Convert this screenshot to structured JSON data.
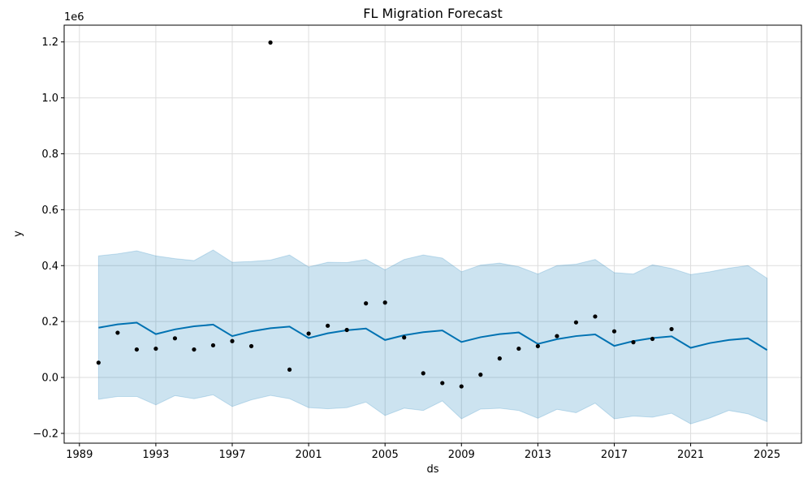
{
  "chart_data": {
    "type": "line",
    "title": "FL Migration Forecast",
    "xlabel": "ds",
    "ylabel": "y",
    "y_offset_label": "1e6",
    "y_scale": 1000000,
    "xlim": [
      1988.2,
      2026.8
    ],
    "ylim": [
      -0.235,
      1.26
    ],
    "x_ticks": [
      1989,
      1993,
      1997,
      2001,
      2005,
      2009,
      2013,
      2017,
      2021,
      2025
    ],
    "x_tick_labels": [
      "1989",
      "1993",
      "1997",
      "2001",
      "2005",
      "2009",
      "2013",
      "2017",
      "2021",
      "2025"
    ],
    "y_ticks": [
      -0.2,
      0.0,
      0.2,
      0.4,
      0.6,
      0.8,
      1.0,
      1.2
    ],
    "y_tick_labels": [
      "−0.2",
      "0.0",
      "0.2",
      "0.4",
      "0.6",
      "0.8",
      "1.0",
      "1.2"
    ],
    "grid": true,
    "colors": {
      "forecast_line": "#0072B2",
      "interval_fill": "#0072B2",
      "interval_opacity": 0.2,
      "points": "#000000",
      "grid": "#dddddd"
    },
    "series": [
      {
        "kind": "observed_points",
        "x": [
          1990,
          1991,
          1992,
          1993,
          1994,
          1995,
          1996,
          1997,
          1998,
          1999,
          2000,
          2001,
          2002,
          2003,
          2004,
          2005,
          2006,
          2007,
          2008,
          2009,
          2010,
          2011,
          2012,
          2013,
          2014,
          2015,
          2016,
          2017,
          2018,
          2019,
          2020
        ],
        "y": [
          0.053,
          0.16,
          0.1,
          0.103,
          0.14,
          0.1,
          0.115,
          0.13,
          0.112,
          1.198,
          0.028,
          0.157,
          0.185,
          0.17,
          0.265,
          0.268,
          0.143,
          0.015,
          -0.02,
          -0.032,
          0.01,
          0.068,
          0.103,
          0.112,
          0.148,
          0.197,
          0.218,
          0.165,
          0.126,
          0.138,
          0.173
        ]
      },
      {
        "kind": "forecast",
        "x": [
          1990,
          1991,
          1992,
          1993,
          1994,
          1995,
          1996,
          1997,
          1998,
          1999,
          2000,
          2001,
          2002,
          2003,
          2004,
          2005,
          2006,
          2007,
          2008,
          2009,
          2010,
          2011,
          2012,
          2013,
          2014,
          2015,
          2016,
          2017,
          2018,
          2019,
          2020,
          2021,
          2022,
          2023,
          2024,
          2025
        ],
        "yhat": [
          0.178,
          0.19,
          0.196,
          0.155,
          0.172,
          0.183,
          0.189,
          0.148,
          0.165,
          0.176,
          0.182,
          0.141,
          0.158,
          0.169,
          0.175,
          0.134,
          0.151,
          0.162,
          0.168,
          0.127,
          0.144,
          0.155,
          0.161,
          0.12,
          0.137,
          0.148,
          0.154,
          0.113,
          0.13,
          0.141,
          0.147,
          0.106,
          0.123,
          0.134,
          0.14,
          0.098
        ],
        "yhat_upper": [
          0.435,
          0.442,
          0.453,
          0.435,
          0.425,
          0.418,
          0.456,
          0.412,
          0.415,
          0.42,
          0.438,
          0.395,
          0.412,
          0.411,
          0.422,
          0.385,
          0.422,
          0.438,
          0.427,
          0.378,
          0.402,
          0.409,
          0.396,
          0.37,
          0.4,
          0.405,
          0.422,
          0.375,
          0.37,
          0.403,
          0.39,
          0.368,
          0.378,
          0.391,
          0.4,
          0.355
        ],
        "yhat_lower": [
          -0.078,
          -0.068,
          -0.068,
          -0.098,
          -0.065,
          -0.076,
          -0.062,
          -0.104,
          -0.08,
          -0.064,
          -0.076,
          -0.108,
          -0.112,
          -0.108,
          -0.088,
          -0.136,
          -0.11,
          -0.118,
          -0.084,
          -0.148,
          -0.113,
          -0.11,
          -0.118,
          -0.146,
          -0.114,
          -0.126,
          -0.092,
          -0.148,
          -0.138,
          -0.142,
          -0.128,
          -0.166,
          -0.145,
          -0.118,
          -0.13,
          -0.158
        ]
      }
    ]
  }
}
